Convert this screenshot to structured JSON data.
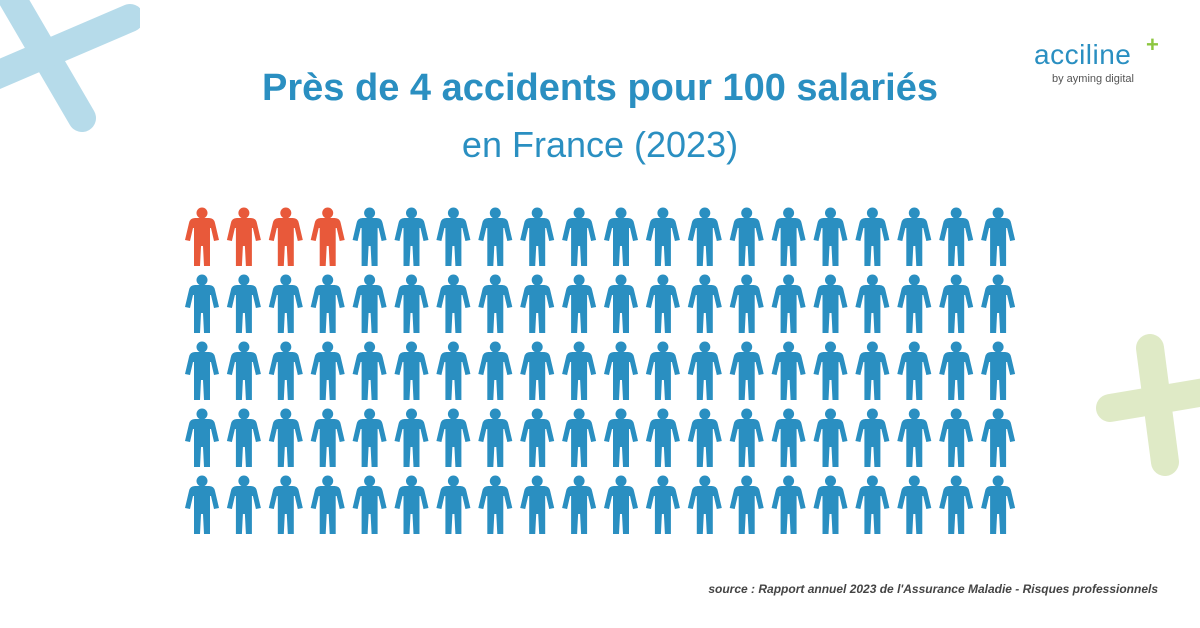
{
  "brand": {
    "name": "acciline",
    "tagline": "by ayming digital",
    "colors": {
      "primary": "#2a8fc1",
      "accent": "#8cc63f",
      "highlight": "#e8593a"
    }
  },
  "decorations": [
    {
      "name": "cross-decoration-top-left",
      "color": "#b6dbea"
    },
    {
      "name": "cross-decoration-right",
      "color": "#dfeac6"
    }
  ],
  "chart_data": {
    "type": "pictogram",
    "title": "Près de 4 accidents pour 100 salariés",
    "subtitle": "en France (2023)",
    "total": 100,
    "highlighted": 4,
    "rows": 5,
    "columns": 20,
    "icon": "person-icon",
    "highlight_color": "#e8593a",
    "base_color": "#2a8fc1"
  },
  "source": "source : Rapport annuel 2023 de l'Assurance Maladie - Risques professionnels"
}
